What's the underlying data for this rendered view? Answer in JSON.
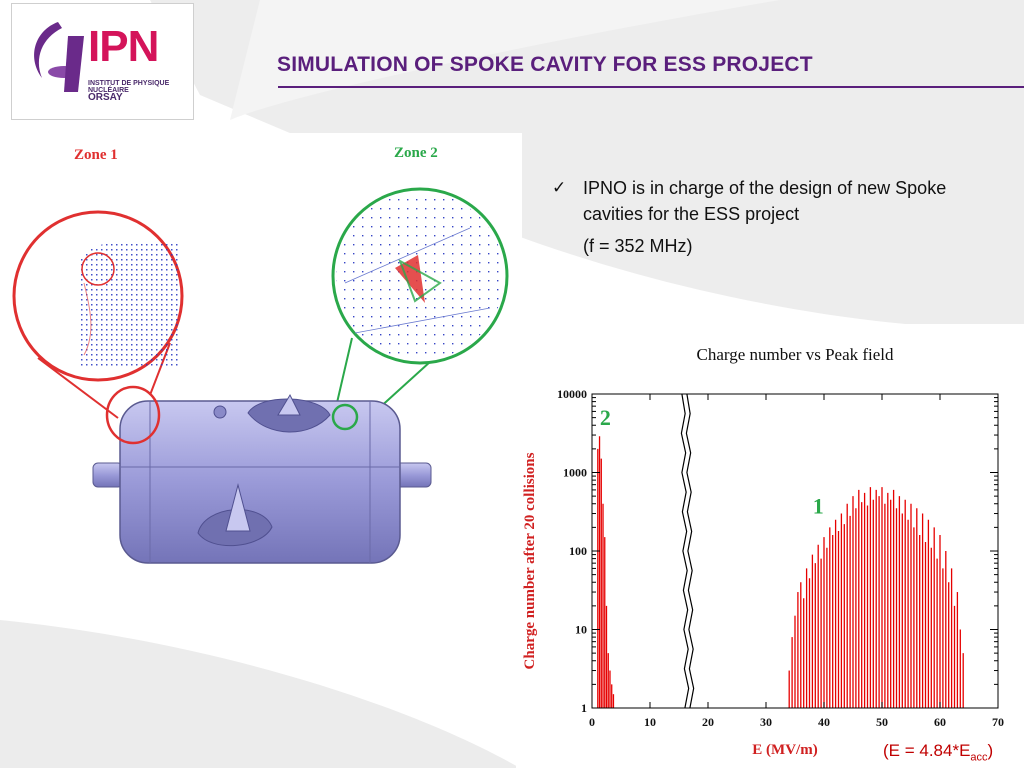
{
  "logo": {
    "name": "IPN",
    "subtitle": "INSTITUT DE PHYSIQUE NUCLÉAIRE",
    "city": "ORSAY"
  },
  "title": "SIMULATION OF SPOKE CAVITY FOR ESS PROJECT",
  "zones": {
    "zone1": "Zone 1",
    "zone2": "Zone 2"
  },
  "bullet": {
    "line1": "IPNO is in charge of the design of new Spoke cavities for the ESS project",
    "line2": "(f = 352 MHz)"
  },
  "note": {
    "prefix": "(E = 4.84*E",
    "subscript": "acc",
    "suffix": ")"
  },
  "colors": {
    "title": "#5a1f7c",
    "zone1": "#e03030",
    "zone2": "#2aa84a",
    "bars": "#e60000",
    "cavity": "#9a9ad8"
  },
  "chart_data": {
    "type": "bar",
    "title": "Charge number vs Peak field",
    "xlabel": "E (MV/m)",
    "ylabel": "Charge number after 20 collisions",
    "xlim": [
      0,
      70
    ],
    "ylim": [
      1,
      10000
    ],
    "yscale": "log",
    "xticks": [
      0,
      10,
      20,
      30,
      40,
      50,
      60,
      70
    ],
    "yticks": [
      1,
      10,
      100,
      1000,
      10000
    ],
    "ytick_labels": [
      "1",
      "10",
      "100",
      "1000",
      "10000"
    ],
    "annotations": [
      {
        "text": "2",
        "x": 2.3,
        "y": 4000,
        "color": "#2aa84a"
      },
      {
        "text": "1",
        "x": 39,
        "y": 300,
        "color": "#2aa84a"
      }
    ],
    "series": [
      {
        "x": [
          1.0,
          1.3,
          1.6,
          1.9,
          2.2,
          2.5,
          2.8,
          3.1,
          3.4,
          3.7,
          34,
          34.5,
          35,
          35.5,
          36,
          36.5,
          37,
          37.5,
          38,
          38.5,
          39,
          39.5,
          40,
          40.5,
          41,
          41.5,
          42,
          42.5,
          43,
          43.5,
          44,
          44.5,
          45,
          45.5,
          46,
          46.5,
          47,
          47.5,
          48,
          48.5,
          49,
          49.5,
          50,
          50.5,
          51,
          51.5,
          52,
          52.5,
          53,
          53.5,
          54,
          54.5,
          55,
          55.5,
          56,
          56.5,
          57,
          57.5,
          58,
          58.5,
          59,
          59.5,
          60,
          60.5,
          61,
          61.5,
          62,
          62.5,
          63,
          63.5,
          64
        ],
        "y": [
          2000,
          2900,
          1500,
          400,
          150,
          20,
          5,
          3,
          2,
          1.5,
          3,
          8,
          15,
          30,
          40,
          25,
          60,
          45,
          90,
          70,
          120,
          80,
          150,
          110,
          200,
          160,
          250,
          180,
          300,
          220,
          400,
          280,
          500,
          350,
          600,
          420,
          550,
          380,
          650,
          450,
          600,
          500,
          650,
          400,
          550,
          450,
          600,
          350,
          500,
          300,
          450,
          250,
          400,
          200,
          350,
          160,
          300,
          130,
          250,
          110,
          200,
          80,
          160,
          60,
          100,
          40,
          60,
          20,
          30,
          10,
          5
        ]
      }
    ]
  }
}
